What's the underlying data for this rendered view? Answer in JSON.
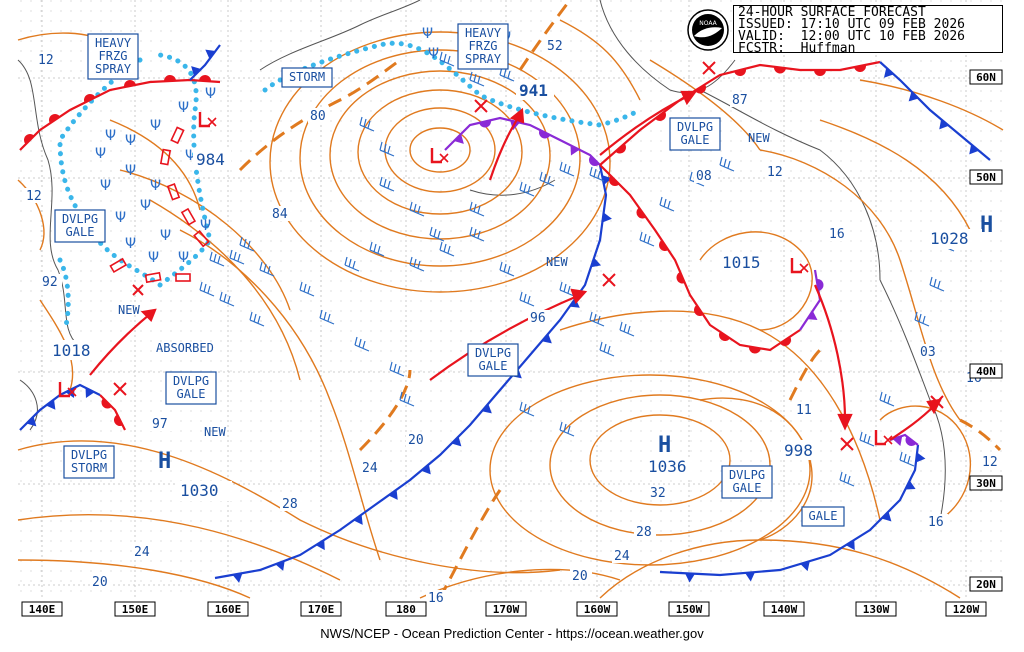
{
  "header": {
    "title": "24-HOUR SURFACE FORECAST",
    "issued": "ISSUED: 17:10 UTC 09 FEB 2026",
    "valid": "VALID:  12:00 UTC 10 FEB 2026",
    "forecaster": "FCSTR:  Huffman",
    "logo_text": "NOAA"
  },
  "footer": "NWS/NCEP - Ocean Prediction Center - https://ocean.weather.gov",
  "colors": {
    "isobar": "#e07a1f",
    "cold_front": "#1a3fd0",
    "warm_front": "#e8141e",
    "occluded_front": "#8a2ad6",
    "freezing_spray": "#3ab6ea",
    "label_text": "#1a4fa0",
    "barb": "#2d6fc8"
  },
  "lon_labels": [
    "140E",
    "150E",
    "160E",
    "170E",
    "180",
    "170W",
    "160W",
    "150W",
    "140W",
    "130W",
    "120W"
  ],
  "lat_labels": [
    "60N",
    "50N",
    "40N",
    "30N",
    "20N"
  ],
  "highs": [
    {
      "letter": "H",
      "pressure": "1030"
    },
    {
      "letter": "H",
      "pressure": "1036"
    },
    {
      "letter": "H",
      "pressure": "1028"
    }
  ],
  "lows": [
    {
      "pressure": "984"
    },
    {
      "pressure": "941"
    },
    {
      "pressure": "1018"
    },
    {
      "pressure": "1015"
    },
    {
      "pressure": "998"
    }
  ],
  "boxed_labels": [
    {
      "text": "HEAVY\nFRZG\nSPRAY"
    },
    {
      "text": "HEAVY\nFRZG\nSPRAY"
    },
    {
      "text": "STORM"
    },
    {
      "text": "DVLPG\nGALE"
    },
    {
      "text": "DVLPG\nGALE"
    },
    {
      "text": "DVLPG\nGALE"
    },
    {
      "text": "DVLPG\nGALE"
    },
    {
      "text": "DVLPG\nGALE"
    },
    {
      "text": "DVLPG\nSTORM"
    },
    {
      "text": "GALE"
    }
  ],
  "plain_labels": [
    "NEW",
    "NEW",
    "NEW",
    "NEW",
    "ABSORBED"
  ],
  "isobar_values": [
    "12",
    "12",
    "80",
    "84",
    "92",
    "97",
    "52",
    "87",
    "08",
    "12",
    "16",
    "96",
    "20",
    "24",
    "28",
    "24",
    "20",
    "32",
    "28",
    "24",
    "20",
    "16",
    "11",
    "03",
    "16",
    "12",
    "16"
  ]
}
